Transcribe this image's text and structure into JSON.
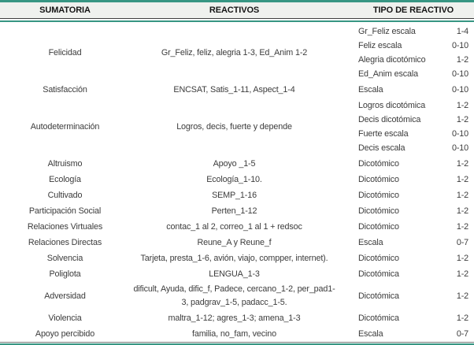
{
  "colors": {
    "accent_teal": "#379683",
    "header_bg": "#eff1ee",
    "dark_rule": "#3f3f3f",
    "body_text": "#3c3c3c"
  },
  "table": {
    "headers": [
      "SUMATORIA",
      "REACTIVOS",
      "TIPO DE REACTIVO"
    ],
    "rows": [
      {
        "sumatoria": "Felicidad",
        "reactivos": "Gr_Feliz, feliz, alegria 1-3, Ed_Anim 1-2",
        "tipos": [
          {
            "name": "Gr_Feliz escala",
            "range": "1-4"
          },
          {
            "name": "Feliz escala",
            "range": "0-10"
          },
          {
            "name": "Alegria dicotómico",
            "range": "1-2"
          },
          {
            "name": "Ed_Anim escala",
            "range": "0-10"
          }
        ]
      },
      {
        "sumatoria": "Satisfacción",
        "reactivos": "ENCSAT, Satis_1-11, Aspect_1-4",
        "tipos": [
          {
            "name": "Escala",
            "range": "0-10"
          }
        ]
      },
      {
        "sumatoria": "Autodeterminación",
        "reactivos": "Logros, decis, fuerte y depende",
        "tipos": [
          {
            "name": "Logros dicotómica",
            "range": "1-2"
          },
          {
            "name": "Decis dicotómica",
            "range": "1-2"
          },
          {
            "name": "Fuerte escala",
            "range": "0-10"
          },
          {
            "name": "Decis escala",
            "range": "0-10"
          }
        ]
      },
      {
        "sumatoria": "Altruismo",
        "reactivos": "Apoyo _1-5",
        "tipos": [
          {
            "name": "Dicotómico",
            "range": "1-2"
          }
        ]
      },
      {
        "sumatoria": "Ecología",
        "reactivos": "Ecología_1-10.",
        "tipos": [
          {
            "name": "Dicotómico",
            "range": "1-2"
          }
        ]
      },
      {
        "sumatoria": "Cultivado",
        "reactivos": "SEMP_1-16",
        "tipos": [
          {
            "name": "Dicotómico",
            "range": "1-2"
          }
        ]
      },
      {
        "sumatoria": "Participación Social",
        "reactivos": "Perten_1-12",
        "tipos": [
          {
            "name": "Dicotómico",
            "range": "1-2"
          }
        ]
      },
      {
        "sumatoria": "Relaciones Virtuales",
        "reactivos": "contac_1 al 2, correo_1 al 1 + redsoc",
        "tipos": [
          {
            "name": "Dicotómico",
            "range": "1-2"
          }
        ]
      },
      {
        "sumatoria": "Relaciones Directas",
        "reactivos": "Reune_A y Reune_f",
        "tipos": [
          {
            "name": "Escala",
            "range": "0-7"
          }
        ]
      },
      {
        "sumatoria": "Solvencia",
        "reactivos": "Tarjeta, presta_1-6, avión, viajo, compper, internet).",
        "tipos": [
          {
            "name": "Dicotómico",
            "range": "1-2"
          }
        ]
      },
      {
        "sumatoria": "Poliglota",
        "reactivos": "LENGUA_1-3",
        "tipos": [
          {
            "name": "Dicotómica",
            "range": "1-2"
          }
        ]
      },
      {
        "sumatoria": "Adversidad",
        "reactivos": "dificult, Ayuda, dific_f, Padece, cercano_1-2, per_pad1-3, padgrav_1-5, padacc_1-5.",
        "tipos": [
          {
            "name": "Dicotómica",
            "range": "1-2"
          }
        ]
      },
      {
        "sumatoria": "Violencia",
        "reactivos": "maltra_1-12; agres_1-3; amena_1-3",
        "tipos": [
          {
            "name": "Dicotómica",
            "range": "1-2"
          }
        ]
      },
      {
        "sumatoria": "Apoyo percibido",
        "reactivos": "familia, no_fam, vecino",
        "tipos": [
          {
            "name": "Escala",
            "range": "0-7"
          }
        ]
      }
    ]
  }
}
